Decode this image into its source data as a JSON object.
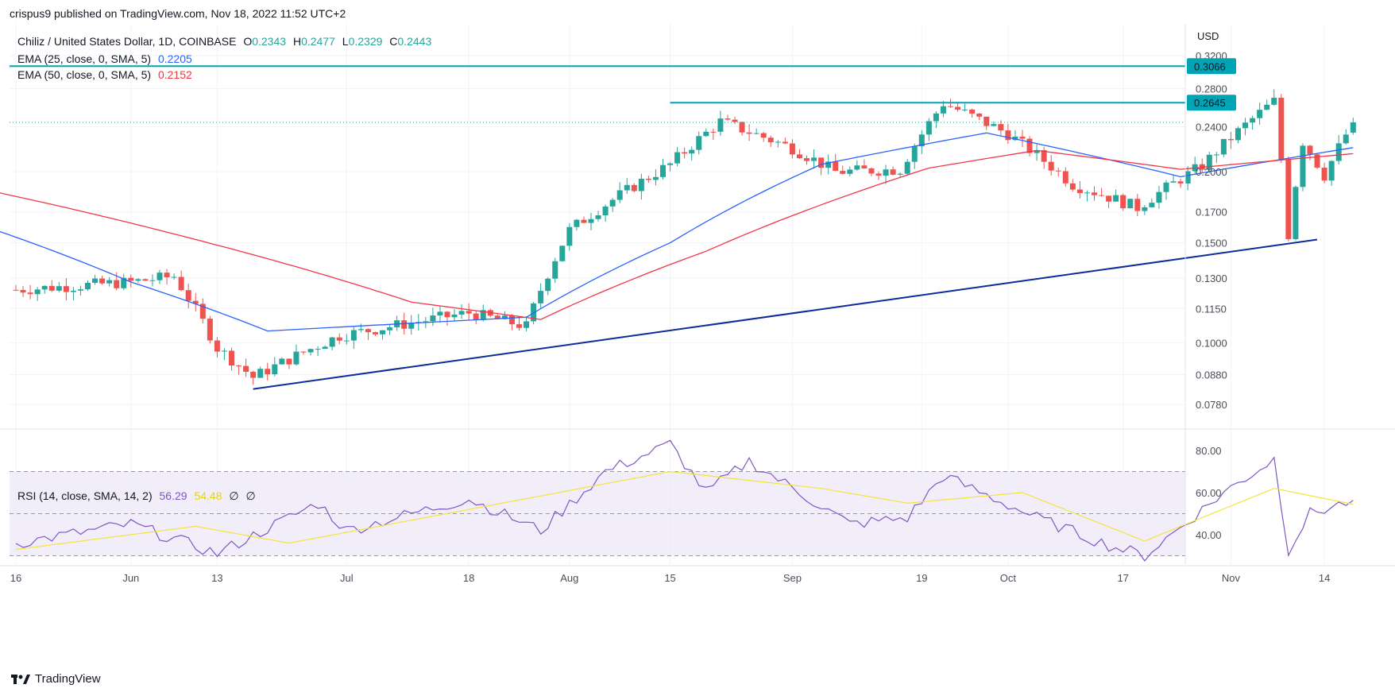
{
  "caption": "crispus9 published on TradingView.com, Nov 18, 2022 11:52 UTC+2",
  "footer": {
    "brand": "TradingView",
    "logo_icon": "tradingview-logo-icon"
  },
  "main_legend": {
    "symbol": "Chiliz / United States Dollar, 1D, COINBASE",
    "o_label": "O",
    "o_value": "0.2343",
    "h_label": "H",
    "h_value": "0.2477",
    "l_label": "L",
    "l_value": "0.2329",
    "c_label": "C",
    "c_value": "0.2443",
    "ema25_label": "EMA (25, close, 0, SMA, 5)",
    "ema25_value": "0.2205",
    "ema50_label": "EMA (50, close, 0, SMA, 5)",
    "ema50_value": "0.2152"
  },
  "rsi_legend": {
    "label": "RSI (14, close, SMA, 14, 2)",
    "rsi_value": "56.29",
    "sma_value": "54.48",
    "extra1": "∅",
    "extra2": "∅"
  },
  "colors": {
    "up": "#26a69a",
    "down": "#ef5350",
    "ema25": "#2962ff",
    "ema50": "#f23645",
    "trend": "#0d2b9a",
    "resistance": "#00a4b4",
    "rsi": "#7e57c2",
    "rsi_ma": "#f5e33f",
    "rsi_band": "#ede7f6",
    "grid": "#f0f3fa",
    "text": "#131722",
    "axis_text": "#4a4e5a"
  },
  "chart_data": {
    "type": "candlestick",
    "currency_label": "USD",
    "price_axis": {
      "scale": "log",
      "ticks": [
        "0.3200",
        "0.2800",
        "0.2400",
        "0.2000",
        "0.1700",
        "0.1500",
        "0.1300",
        "0.1150",
        "0.1000",
        "0.0880",
        "0.0780"
      ]
    },
    "time_axis": [
      "16",
      "Jun",
      "13",
      "Jul",
      "18",
      "Aug",
      "15",
      "Sep",
      "19",
      "Oct",
      "17",
      "Nov",
      "14"
    ],
    "price_labels": {
      "resistance_high": "0.3066",
      "resistance_mid": "0.2645"
    },
    "horizontal_levels": [
      {
        "name": "resistance-high",
        "value": 0.3066
      },
      {
        "name": "resistance-mid",
        "value": 0.2645,
        "start": "2022-08-15"
      }
    ],
    "current_price": 0.2443,
    "trendline": [
      {
        "date": "2022-06-18",
        "price": 0.083
      },
      {
        "date": "2022-11-13",
        "price": 0.152
      }
    ],
    "ohlc_anchors": [
      {
        "date": "2022-05-16",
        "close": 0.124
      },
      {
        "date": "2022-06-01",
        "close": 0.128
      },
      {
        "date": "2022-06-07",
        "close": 0.131
      },
      {
        "date": "2022-06-13",
        "close": 0.098
      },
      {
        "date": "2022-06-18",
        "close": 0.087
      },
      {
        "date": "2022-06-30",
        "close": 0.103
      },
      {
        "date": "2022-07-18",
        "close": 0.113
      },
      {
        "date": "2022-07-26",
        "close": 0.107
      },
      {
        "date": "2022-08-01",
        "close": 0.158
      },
      {
        "date": "2022-08-15",
        "close": 0.206
      },
      {
        "date": "2022-08-22",
        "close": 0.245
      },
      {
        "date": "2022-09-01",
        "close": 0.22
      },
      {
        "date": "2022-09-07",
        "close": 0.2
      },
      {
        "date": "2022-09-16",
        "close": 0.202
      },
      {
        "date": "2022-09-22",
        "close": 0.264
      },
      {
        "date": "2022-10-01",
        "close": 0.233
      },
      {
        "date": "2022-10-10",
        "close": 0.19
      },
      {
        "date": "2022-10-19",
        "close": 0.173
      },
      {
        "date": "2022-10-28",
        "close": 0.205
      },
      {
        "date": "2022-11-07",
        "close": 0.266
      },
      {
        "date": "2022-11-09",
        "close": 0.155
      },
      {
        "date": "2022-11-11",
        "close": 0.226
      },
      {
        "date": "2022-11-14",
        "close": 0.197
      },
      {
        "date": "2022-11-18",
        "close": 0.2443
      }
    ],
    "ema25_anchors": [
      {
        "date": "2022-05-10",
        "value": 0.163
      },
      {
        "date": "2022-06-01",
        "value": 0.128
      },
      {
        "date": "2022-06-20",
        "value": 0.105
      },
      {
        "date": "2022-07-26",
        "value": 0.111
      },
      {
        "date": "2022-08-15",
        "value": 0.15
      },
      {
        "date": "2022-09-05",
        "value": 0.206
      },
      {
        "date": "2022-09-28",
        "value": 0.234
      },
      {
        "date": "2022-10-25",
        "value": 0.196
      },
      {
        "date": "2022-11-18",
        "value": 0.2205
      }
    ],
    "ema50_anchors": [
      {
        "date": "2022-05-10",
        "value": 0.188
      },
      {
        "date": "2022-06-10",
        "value": 0.152
      },
      {
        "date": "2022-07-10",
        "value": 0.118
      },
      {
        "date": "2022-07-28",
        "value": 0.11
      },
      {
        "date": "2022-08-20",
        "value": 0.145
      },
      {
        "date": "2022-09-20",
        "value": 0.203
      },
      {
        "date": "2022-10-05",
        "value": 0.218
      },
      {
        "date": "2022-10-25",
        "value": 0.202
      },
      {
        "date": "2022-11-18",
        "value": 0.2152
      }
    ],
    "rsi": {
      "axis_ticks": [
        "80.00",
        "60.00",
        "40.00"
      ],
      "upper_band": 70,
      "lower_band": 30,
      "middle": 50,
      "rsi_anchors": [
        {
          "date": "2022-05-16",
          "value": 36
        },
        {
          "date": "2022-06-01",
          "value": 45
        },
        {
          "date": "2022-06-13",
          "value": 31
        },
        {
          "date": "2022-06-27",
          "value": 55
        },
        {
          "date": "2022-07-01",
          "value": 42
        },
        {
          "date": "2022-07-18",
          "value": 57
        },
        {
          "date": "2022-07-28",
          "value": 42
        },
        {
          "date": "2022-08-06",
          "value": 70
        },
        {
          "date": "2022-08-15",
          "value": 83
        },
        {
          "date": "2022-08-20",
          "value": 60
        },
        {
          "date": "2022-08-26",
          "value": 75
        },
        {
          "date": "2022-09-09",
          "value": 45
        },
        {
          "date": "2022-09-17",
          "value": 48
        },
        {
          "date": "2022-09-22",
          "value": 68
        },
        {
          "date": "2022-10-05",
          "value": 48
        },
        {
          "date": "2022-10-15",
          "value": 35
        },
        {
          "date": "2022-10-20",
          "value": 30
        },
        {
          "date": "2022-10-31",
          "value": 60
        },
        {
          "date": "2022-11-07",
          "value": 76
        },
        {
          "date": "2022-11-09",
          "value": 33
        },
        {
          "date": "2022-11-12",
          "value": 50
        },
        {
          "date": "2022-11-18",
          "value": 56.29
        }
      ],
      "rsi_ma_anchors": [
        {
          "date": "2022-05-16",
          "value": 33
        },
        {
          "date": "2022-06-10",
          "value": 44
        },
        {
          "date": "2022-06-23",
          "value": 36
        },
        {
          "date": "2022-07-18",
          "value": 52
        },
        {
          "date": "2022-08-15",
          "value": 70
        },
        {
          "date": "2022-09-05",
          "value": 62
        },
        {
          "date": "2022-09-17",
          "value": 55
        },
        {
          "date": "2022-10-03",
          "value": 60
        },
        {
          "date": "2022-10-20",
          "value": 37
        },
        {
          "date": "2022-11-07",
          "value": 62
        },
        {
          "date": "2022-11-18",
          "value": 54.48
        }
      ]
    }
  }
}
